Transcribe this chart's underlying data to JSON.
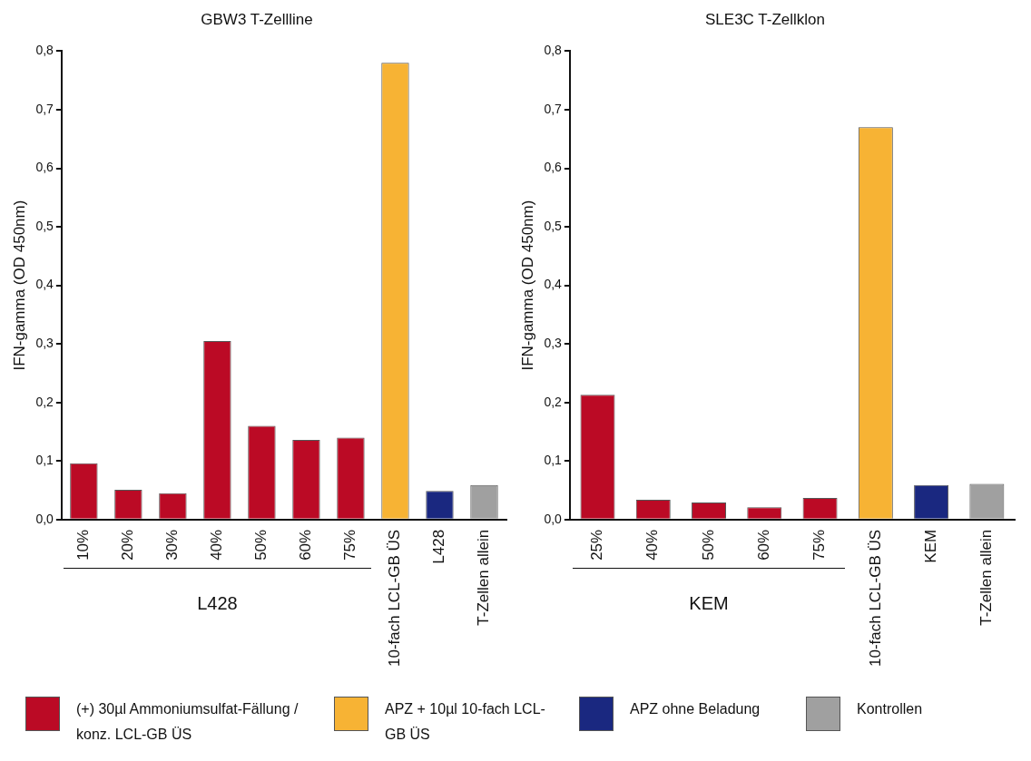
{
  "chart_data": [
    {
      "type": "bar",
      "title": "GBW3 T-Zellline",
      "ylabel": "IFN-gamma (OD 450nm)",
      "categories": [
        "10%",
        "20%",
        "30%",
        "40%",
        "50%",
        "60%",
        "75%",
        "10-fach LCL-GB ÜS",
        "L428",
        "T-Zellen allein"
      ],
      "series": [
        {
          "name": "(+) 30µl Ammoniumsulfat-Fällung / konz. LCL-GB ÜS",
          "color": "#bb0a25",
          "values": [
            0.096,
            0.051,
            0.045,
            0.305,
            0.16,
            0.136,
            0.14,
            null,
            null,
            null
          ]
        },
        {
          "name": "APZ + 10µl 10-fach LCL-GB ÜS",
          "color": "#f7b334",
          "values": [
            null,
            null,
            null,
            null,
            null,
            null,
            null,
            0.78,
            null,
            null
          ]
        },
        {
          "name": "APZ ohne Beladung",
          "color": "#1a2880",
          "values": [
            null,
            null,
            null,
            null,
            null,
            null,
            null,
            null,
            0.049,
            null
          ]
        },
        {
          "name": "Kontrollen",
          "color": "#a0a0a0",
          "values": [
            null,
            null,
            null,
            null,
            null,
            null,
            null,
            null,
            null,
            0.059
          ]
        }
      ],
      "ylim": [
        0,
        0.8
      ],
      "yticks": [
        {
          "value": 0,
          "label": "0,0"
        },
        {
          "value": 0.1,
          "label": "0,1"
        },
        {
          "value": 0.2,
          "label": "0,2"
        },
        {
          "value": 0.3,
          "label": "0,3"
        },
        {
          "value": 0.4,
          "label": "0,4"
        },
        {
          "value": 0.5,
          "label": "0,5"
        },
        {
          "value": 0.6,
          "label": "0,6"
        },
        {
          "value": 0.7,
          "label": "0,7"
        },
        {
          "value": 0.8,
          "label": "0,8"
        }
      ],
      "annotations": [
        "L428"
      ],
      "legend": "bottom"
    },
    {
      "type": "bar",
      "title": "SLE3C T-Zellklon",
      "ylabel": "IFN-gamma (OD 450nm)",
      "categories": [
        "25%",
        "40%",
        "50%",
        "60%",
        "75%",
        "10-fach LCL-GB ÜS",
        "KEM",
        "T-Zellen allein"
      ],
      "series": [
        {
          "color": "#bb0a25",
          "values": [
            0.213,
            0.034,
            0.029,
            0.021,
            0.037,
            null,
            null,
            null
          ]
        },
        {
          "color": "#f7b334",
          "values": [
            null,
            null,
            null,
            null,
            null,
            0.67,
            null,
            null
          ]
        },
        {
          "color": "#1a2880",
          "values": [
            null,
            null,
            null,
            null,
            null,
            null,
            0.059,
            null
          ]
        },
        {
          "color": "#a0a0a0",
          "values": [
            null,
            null,
            null,
            null,
            null,
            null,
            null,
            0.061
          ]
        }
      ],
      "ylim": [
        0,
        0.8
      ],
      "yticks": [
        {
          "value": 0,
          "label": "0,0"
        },
        {
          "value": 0.1,
          "label": "0,1"
        },
        {
          "value": 0.2,
          "label": "0,2"
        },
        {
          "value": 0.3,
          "label": "0,3"
        },
        {
          "value": 0.4,
          "label": "0,4"
        },
        {
          "value": 0.5,
          "label": "0,5"
        },
        {
          "value": 0.6,
          "label": "0,6"
        },
        {
          "value": 0.7,
          "label": "0,7"
        },
        {
          "value": 0.8,
          "label": "0,8"
        }
      ],
      "annotations": [
        "KEM"
      ]
    }
  ]
}
